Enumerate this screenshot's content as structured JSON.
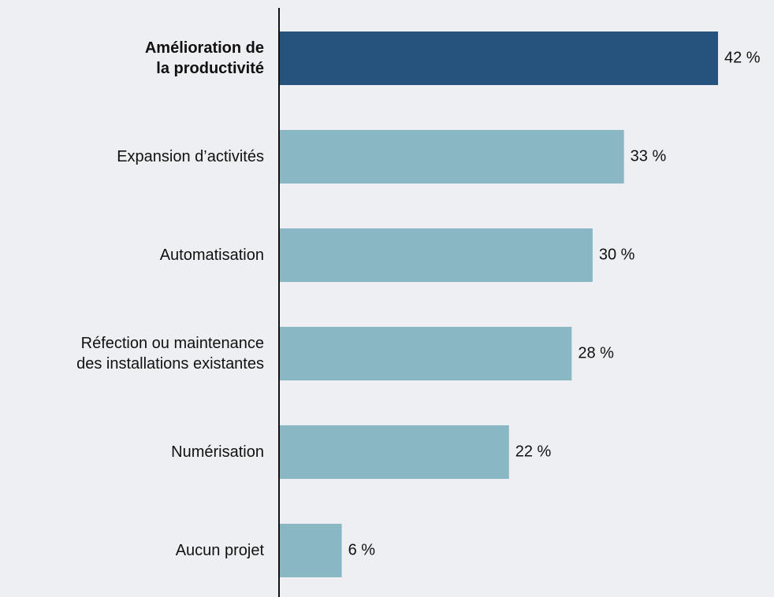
{
  "chart_data": {
    "type": "bar",
    "orientation": "horizontal",
    "categories": [
      "Amélioration de\nla productivité",
      "Expansion d’activités",
      "Automatisation",
      "Réfection ou maintenance\ndes installations existantes",
      "Numérisation",
      "Aucun projet"
    ],
    "values": [
      42,
      33,
      30,
      28,
      22,
      6
    ],
    "value_labels": [
      "42 %",
      "33 %",
      "30 %",
      "28 %",
      "22 %",
      "6 %"
    ],
    "colors": [
      "#26527e",
      "#89b7c3",
      "#89b7c3",
      "#89b7c3",
      "#89b7c3",
      "#89b7c3"
    ],
    "highlight": 0
  }
}
